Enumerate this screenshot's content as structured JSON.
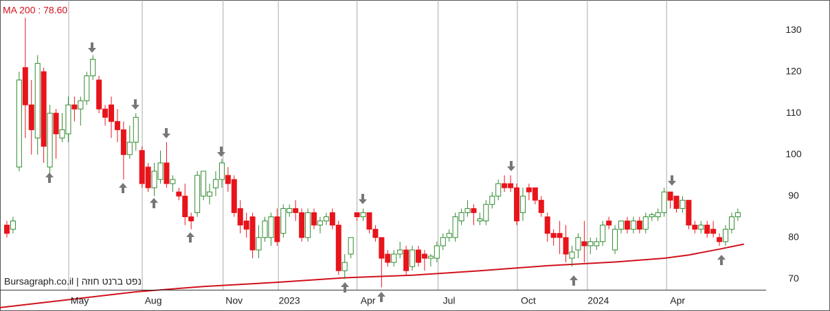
{
  "chart_data": {
    "type": "candlestick",
    "legend_text": "MA 200 : 78.60",
    "source": "Bursagraph.co.il | נפט ברנט חוזה",
    "open": [
      83,
      82,
      97,
      121,
      112,
      104,
      120,
      97,
      110,
      104,
      105,
      112,
      111,
      113,
      119,
      118,
      111,
      112,
      108,
      106,
      100,
      103,
      101,
      97,
      92,
      94,
      98,
      93,
      91,
      90,
      85,
      86,
      90,
      90,
      92,
      94,
      95,
      94,
      87,
      84,
      85,
      77,
      80,
      80,
      85,
      81,
      86,
      87,
      86,
      80,
      86,
      83,
      84,
      86,
      83,
      72,
      76,
      86,
      85,
      86,
      82,
      80,
      76,
      74,
      76,
      77,
      73,
      77,
      76,
      75,
      75,
      78,
      80,
      80,
      84,
      86,
      87,
      84,
      84,
      88,
      90,
      93,
      93,
      92,
      86,
      92,
      92,
      89,
      85,
      81,
      81,
      80,
      75,
      77,
      79,
      78,
      78,
      79,
      84,
      77,
      82,
      84,
      82,
      84,
      82,
      85,
      85,
      86,
      91,
      90,
      87,
      89,
      83,
      82,
      83,
      82,
      80,
      79,
      82,
      85
    ],
    "high": [
      84,
      85,
      120,
      133,
      118,
      124,
      121,
      112,
      111,
      110,
      114,
      114,
      114,
      120,
      124,
      119,
      112,
      114,
      111,
      108,
      107,
      110,
      102,
      98,
      98,
      101,
      103,
      95,
      92,
      93,
      86,
      96,
      96,
      93,
      96,
      99,
      97,
      95,
      89,
      86,
      86,
      83,
      85,
      86,
      87,
      88,
      88,
      89,
      87,
      87,
      87,
      85,
      86,
      87,
      84,
      76,
      80,
      86,
      87,
      86,
      83,
      80,
      77,
      77,
      79,
      78,
      78,
      78,
      77,
      76,
      79,
      81,
      82,
      86,
      87,
      89,
      88,
      86,
      89,
      91,
      94,
      95,
      95,
      93,
      92,
      93,
      92,
      90,
      86,
      82,
      84,
      83,
      78,
      81,
      84,
      80,
      80,
      84,
      85,
      83,
      84,
      85,
      85,
      85,
      86,
      86,
      87,
      92,
      91,
      90,
      90,
      89,
      84,
      84,
      84,
      84,
      81,
      83,
      86,
      87
    ],
    "low": [
      80,
      81,
      96,
      104,
      100,
      100,
      98,
      94,
      99,
      103,
      103,
      108,
      107,
      112,
      118,
      110,
      107,
      104,
      103,
      94,
      99,
      101,
      92,
      91,
      90,
      93,
      92,
      91,
      89,
      83,
      82,
      85,
      89,
      88,
      90,
      92,
      91,
      85,
      81,
      80,
      75,
      75,
      79,
      78,
      78,
      80,
      85,
      84,
      79,
      79,
      82,
      81,
      83,
      82,
      71,
      70,
      75,
      84,
      84,
      81,
      79,
      68,
      73,
      73,
      75,
      71,
      72,
      73,
      72,
      73,
      74,
      77,
      79,
      79,
      83,
      85,
      83,
      83,
      83,
      87,
      89,
      91,
      91,
      83,
      84,
      89,
      88,
      85,
      79,
      78,
      76,
      74,
      73,
      75,
      74,
      76,
      77,
      78,
      82,
      76,
      81,
      81,
      81,
      81,
      81,
      84,
      84,
      85,
      87,
      86,
      86,
      82,
      81,
      81,
      80,
      80,
      78,
      78,
      81,
      84
    ],
    "close": [
      81,
      84,
      118,
      112,
      106,
      122,
      102,
      110,
      105,
      106,
      112,
      111,
      113,
      119,
      123,
      111,
      109,
      108,
      106,
      100,
      103,
      109,
      93,
      92,
      96,
      98,
      93,
      94,
      90,
      85,
      84,
      95,
      96,
      91,
      94,
      98,
      93,
      86,
      83,
      82,
      77,
      80,
      84,
      85,
      79,
      87,
      87,
      86,
      80,
      86,
      83,
      84,
      85,
      83,
      72,
      74,
      80,
      85,
      86,
      82,
      80,
      75,
      74,
      76,
      77,
      72,
      77,
      74,
      75,
      75.5,
      78,
      80,
      81,
      85,
      86,
      87,
      86,
      84.5,
      88,
      90,
      93,
      92,
      92,
      84,
      90,
      91,
      89,
      86,
      81,
      80,
      80,
      76,
      76.5,
      80,
      78,
      79,
      79,
      83,
      83,
      82,
      84,
      82,
      84,
      82,
      85,
      85.5,
      86,
      91,
      89,
      87,
      89,
      83,
      82,
      83,
      81,
      81,
      79,
      82,
      85,
      86
    ],
    "up_color": "#2f8a2f",
    "down_color": "#e8141b",
    "ma": {
      "color": "#d0101a",
      "x": [
        -1.1,
        10,
        21,
        32,
        44,
        55,
        66,
        77,
        88,
        99,
        107,
        111,
        116,
        120
      ],
      "values": [
        63.1,
        65.0,
        66.9,
        68.2,
        69.2,
        70.3,
        70.9,
        72.0,
        73.2,
        74.1,
        75.0,
        75.8,
        77.2,
        78.4
      ]
    },
    "xlim": [
      -1.12,
      123.6
    ],
    "xticks": [
      {
        "value": 10.07,
        "label": "May"
      },
      {
        "value": 22.04,
        "label": "Aug"
      },
      {
        "value": 35.2,
        "label": "Nov"
      },
      {
        "value": 44.2,
        "label": "2023"
      },
      {
        "value": 57.0,
        "label": "Apr"
      },
      {
        "value": 70.2,
        "label": "Jul"
      },
      {
        "value": 83.1,
        "label": "Oct"
      },
      {
        "value": 94.5,
        "label": "2024"
      },
      {
        "value": 107.4,
        "label": "Apr"
      }
    ],
    "ylim": [
      67.4,
      137.3
    ],
    "yticks": [
      70,
      80,
      90,
      100,
      110,
      120,
      130
    ],
    "grid": true
  }
}
